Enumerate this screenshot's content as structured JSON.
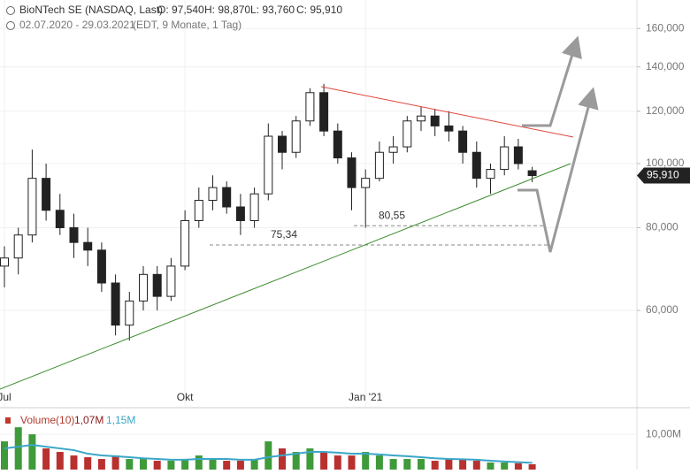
{
  "chart_data": [
    {
      "type": "candlestick",
      "title": "BioNTech SE (NASDAQ, Last)",
      "stats": [
        "O: 97,540",
        "H: 98,870",
        "L: 93,760",
        "C: 95,910"
      ],
      "period": "02.07.2020 - 29.03.2021",
      "subtitle": "(EDT, 9 Monate, 1 Tag)",
      "categories": [
        "Jul",
        null,
        null,
        null,
        null,
        null,
        null,
        null,
        null,
        null,
        null,
        null,
        null,
        "Okt",
        null,
        null,
        null,
        null,
        null,
        null,
        null,
        null,
        null,
        null,
        null,
        null,
        "Jan '21",
        null,
        null,
        null,
        null,
        null,
        null,
        null,
        null,
        null,
        null,
        null,
        null
      ],
      "open": [
        70,
        72,
        78,
        95,
        85,
        80,
        76,
        74,
        66,
        57,
        62,
        68,
        63,
        70,
        82,
        88,
        92,
        86,
        82,
        90,
        110,
        104,
        116,
        128,
        112,
        102,
        92,
        95,
        104,
        106,
        116,
        118,
        114,
        112,
        104,
        95,
        98,
        106,
        97.54
      ],
      "high": [
        75,
        80,
        105,
        100,
        90,
        84,
        80,
        76,
        68,
        64,
        70,
        70,
        72,
        85,
        92,
        96,
        94,
        90,
        92,
        115,
        112,
        118,
        130,
        132,
        115,
        104,
        98,
        108,
        110,
        118,
        122,
        121,
        120,
        114,
        108,
        100,
        110,
        109,
        98.87
      ],
      "low": [
        65,
        68,
        76,
        82,
        78,
        72,
        70,
        64,
        55,
        54,
        60,
        60,
        62,
        69,
        80,
        85,
        84,
        78,
        80,
        88,
        98,
        102,
        114,
        110,
        100,
        85,
        80,
        94,
        100,
        104,
        112,
        110,
        108,
        100,
        92,
        90,
        96,
        98,
        93.76
      ],
      "close": [
        72,
        78,
        95,
        85,
        80,
        76,
        74,
        66,
        57,
        62,
        68,
        63,
        70,
        82,
        88,
        92,
        86,
        82,
        90,
        110,
        104,
        116,
        128,
        112,
        102,
        92,
        95,
        104,
        106,
        116,
        118,
        114,
        112,
        104,
        95,
        98,
        106,
        100,
        95.91
      ],
      "log": true,
      "ylim": [
        42.9,
        176.7
      ],
      "yticks": [
        {
          "value": 60,
          "label": "60,000"
        },
        {
          "value": 80,
          "label": "80,000"
        },
        {
          "value": 100,
          "label": "100,000"
        },
        {
          "value": 120,
          "label": "120,000"
        },
        {
          "value": 140,
          "label": "140,000"
        },
        {
          "value": 160,
          "label": "160,000"
        }
      ],
      "levels": [
        {
          "value": 80.55,
          "label": "80,55"
        },
        {
          "value": 75.34,
          "label": "75,34"
        }
      ],
      "last_price": {
        "value": 95.91,
        "label": "95,910"
      },
      "grid": true
    },
    {
      "type": "bar",
      "title": "Volume(10)",
      "legend_values": [
        "1,07M",
        "1,15M"
      ],
      "values": [
        8,
        12,
        10,
        6,
        5,
        4,
        3.5,
        3,
        4,
        3,
        3,
        2.5,
        2.5,
        3,
        4,
        3,
        2.5,
        2.5,
        3,
        8,
        6,
        5,
        6,
        5,
        4,
        4,
        5,
        4,
        3,
        3,
        3,
        2.5,
        3,
        3,
        2.5,
        2,
        2,
        1.8,
        1.5
      ],
      "ma": [
        6,
        6.5,
        7,
        6.5,
        6,
        5.5,
        4.5,
        4,
        3.8,
        3.5,
        3.2,
        3,
        2.8,
        2.8,
        3,
        3,
        3,
        2.8,
        2.8,
        3.5,
        4,
        4.5,
        5,
        5,
        4.8,
        4.5,
        4.5,
        4.3,
        4,
        3.8,
        3.5,
        3.2,
        3,
        2.9,
        2.8,
        2.5,
        2.3,
        2.1,
        1.9
      ],
      "ma_color": "#3aa6c8",
      "ylim": [
        0,
        17.3
      ],
      "yticks": [
        {
          "value": 10,
          "label": "10,00M"
        }
      ]
    }
  ]
}
